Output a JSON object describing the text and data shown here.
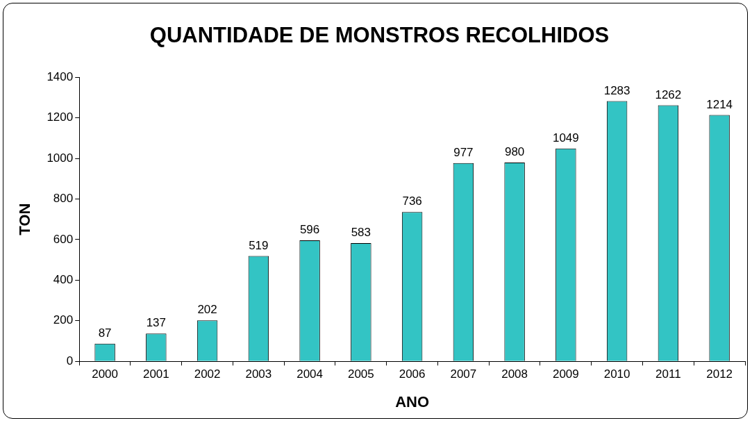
{
  "chart_data": {
    "type": "bar",
    "title": "QUANTIDADE DE MONSTROS RECOLHIDOS",
    "xlabel": "ANO",
    "ylabel": "TON",
    "categories": [
      "2000",
      "2001",
      "2002",
      "2003",
      "2004",
      "2005",
      "2006",
      "2007",
      "2008",
      "2009",
      "2010",
      "2011",
      "2012"
    ],
    "values": [
      87,
      137,
      202,
      519,
      596,
      583,
      736,
      977,
      980,
      1049,
      1283,
      1262,
      1214
    ],
    "color": "#33c4c4",
    "ylim": [
      0,
      1400
    ],
    "yticks": [
      0,
      200,
      400,
      600,
      800,
      1000,
      1200,
      1400
    ],
    "grid": false,
    "legend": false,
    "data_labels": true
  }
}
